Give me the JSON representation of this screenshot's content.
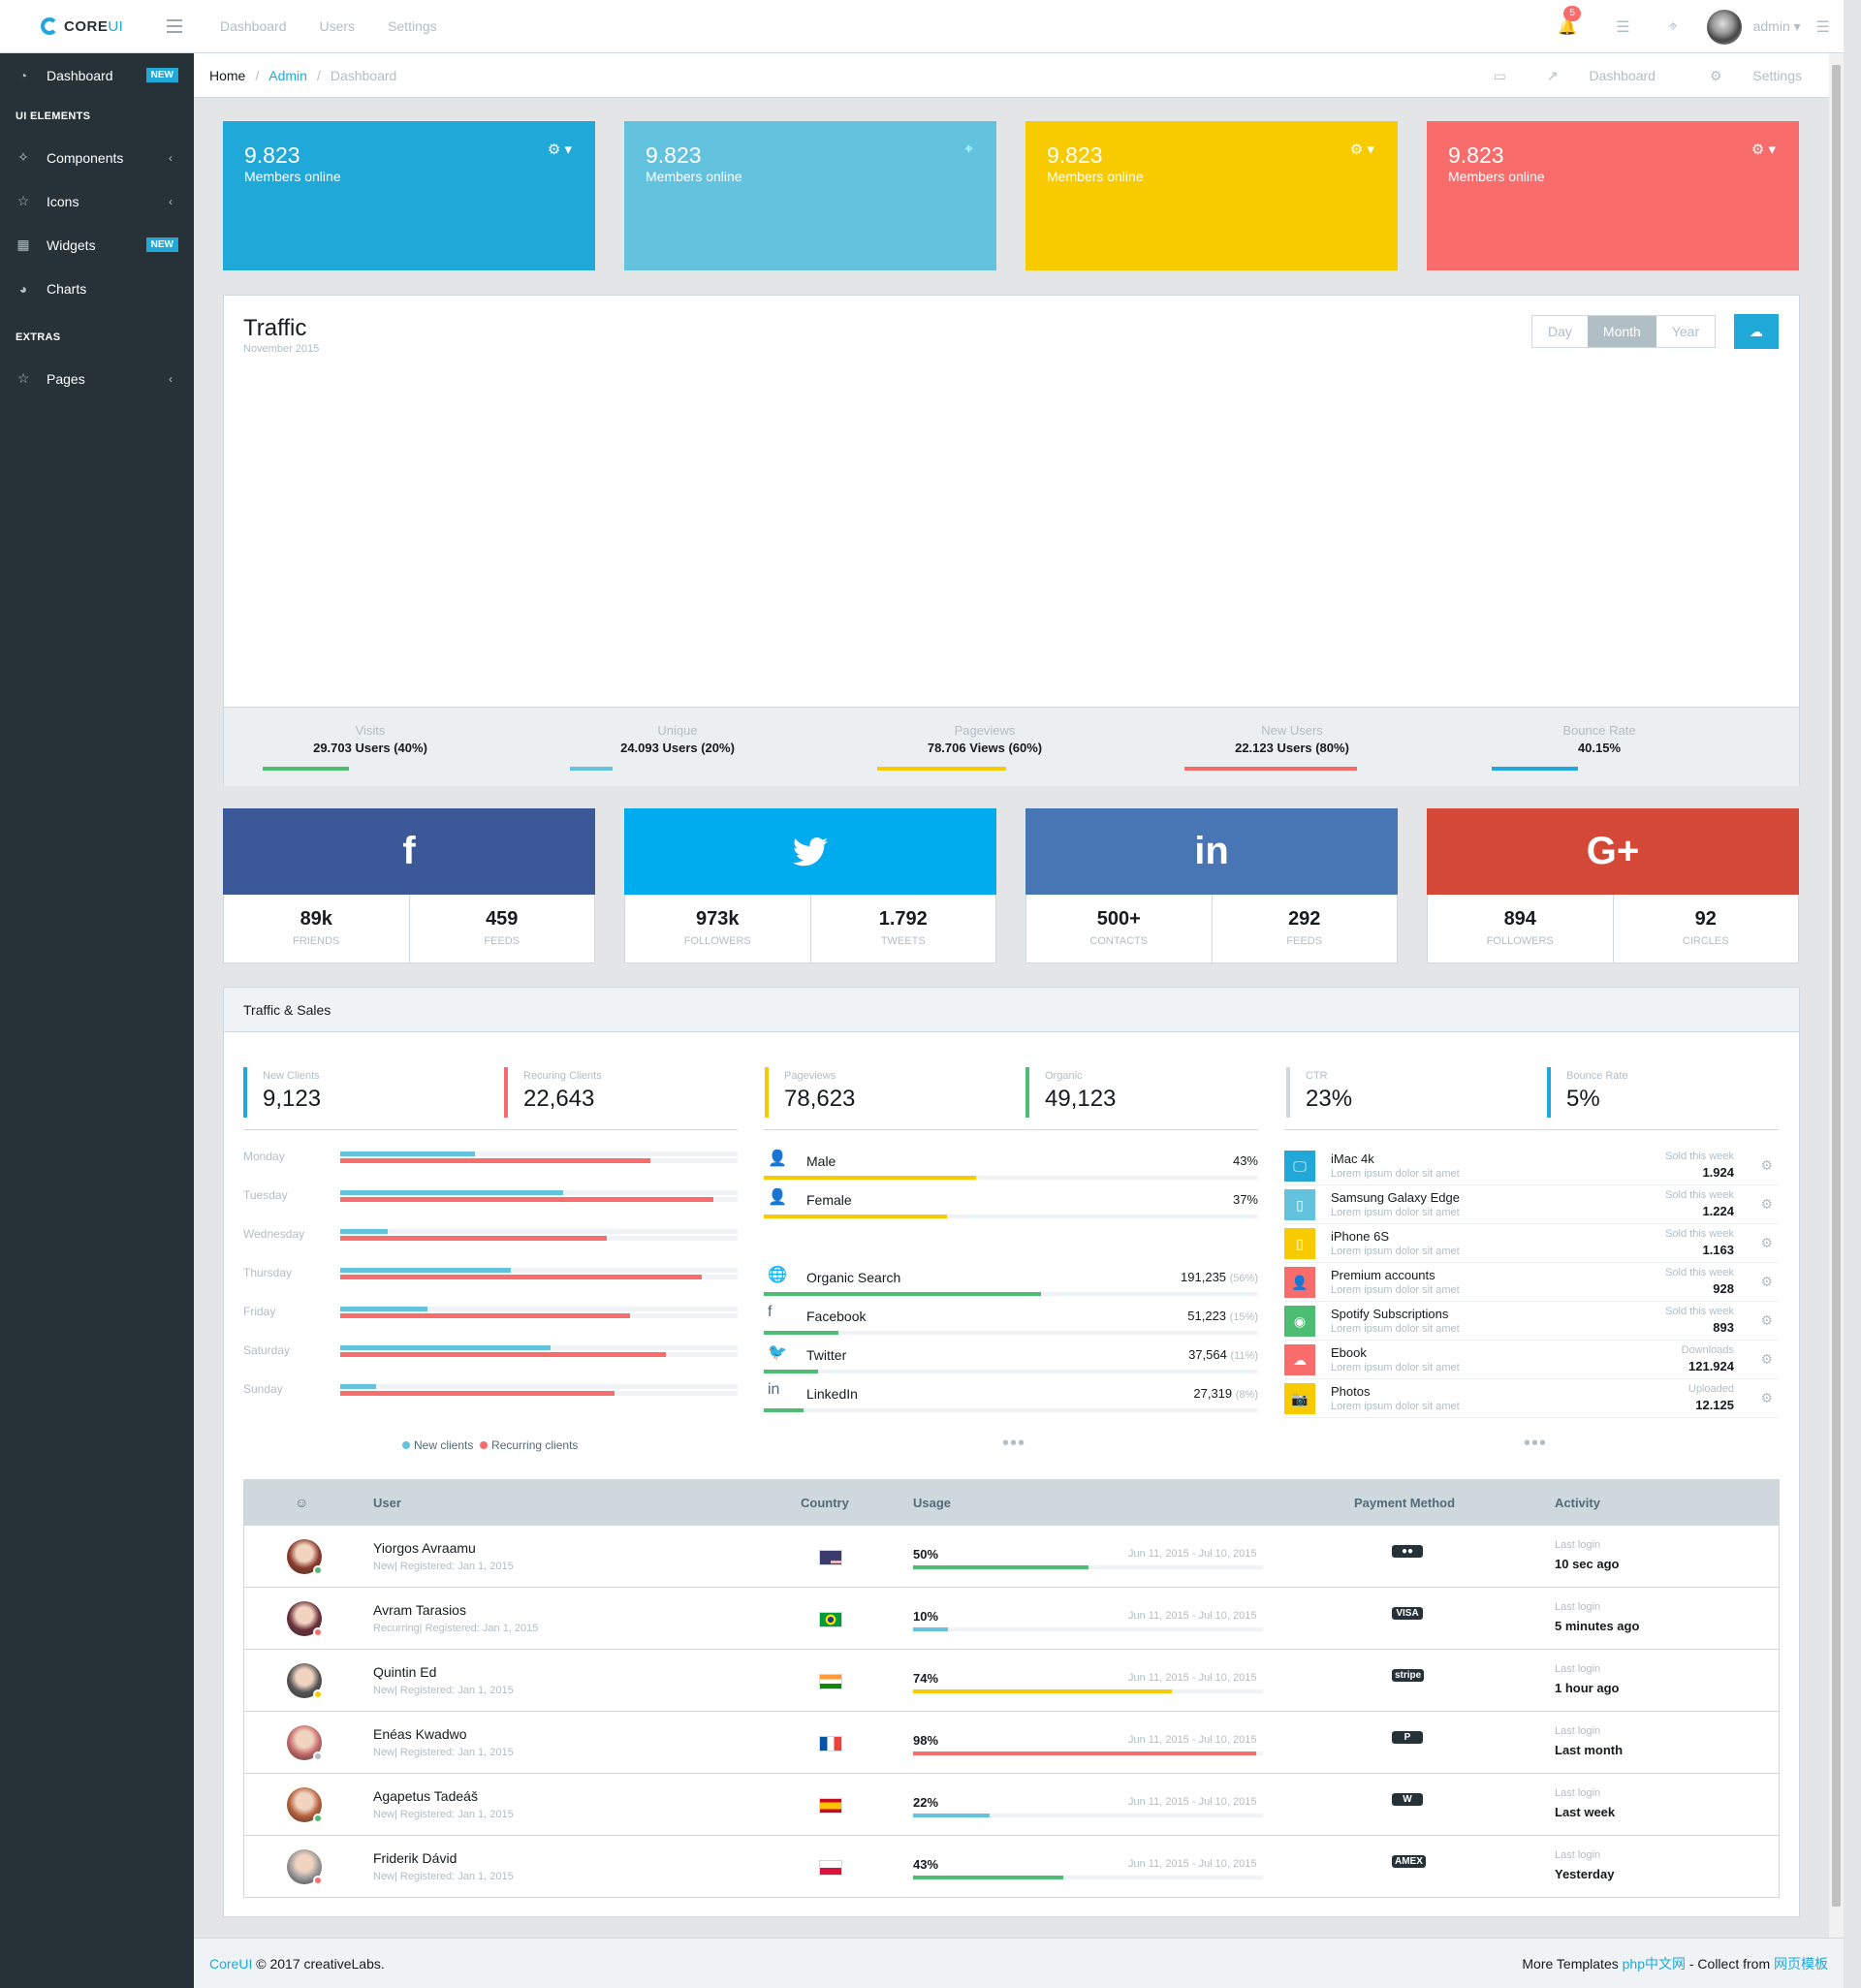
{
  "header": {
    "brand": "CORE",
    "brand_suffix": "UI",
    "nav": [
      "Dashboard",
      "Users",
      "Settings"
    ],
    "notif_count": "5",
    "user": "admin"
  },
  "sidebar": {
    "items": [
      {
        "label": "Dashboard",
        "icon": "speedometer-icon",
        "badge": "NEW"
      },
      {
        "section": "UI ELEMENTS"
      },
      {
        "label": "Components",
        "icon": "puzzle-icon",
        "chevron": "‹"
      },
      {
        "label": "Icons",
        "icon": "star-icon",
        "chevron": "‹"
      },
      {
        "label": "Widgets",
        "icon": "calculator-icon",
        "badge": "NEW"
      },
      {
        "label": "Charts",
        "icon": "pie-chart-icon"
      },
      {
        "section": "EXTRAS"
      },
      {
        "label": "Pages",
        "icon": "star-icon",
        "chevron": "‹"
      }
    ]
  },
  "breadcrumb": {
    "home": "Home",
    "admin": "Admin",
    "current": "Dashboard",
    "right_dashboard": "Dashboard",
    "right_settings": "Settings"
  },
  "stats": [
    {
      "value": "9.823",
      "label": "Members online",
      "color": "#20a8d8"
    },
    {
      "value": "9.823",
      "label": "Members online",
      "color": "#63c2de"
    },
    {
      "value": "9.823",
      "label": "Members online",
      "color": "#f8cb00"
    },
    {
      "value": "9.823",
      "label": "Members online",
      "color": "#f86c6b"
    }
  ],
  "traffic": {
    "title": "Traffic",
    "subtitle": "November 2015",
    "buttons": [
      "Day",
      "Month",
      "Year"
    ],
    "active": "Month",
    "footer": [
      {
        "title": "Visits",
        "value": "29.703 Users (40%)",
        "percent": 40,
        "color": "#4dbd74"
      },
      {
        "title": "Unique",
        "value": "24.093 Users (20%)",
        "percent": 20,
        "color": "#63c2de"
      },
      {
        "title": "Pageviews",
        "value": "78.706 Views (60%)",
        "percent": 60,
        "color": "#f8cb00"
      },
      {
        "title": "New Users",
        "value": "22.123 Users (80%)",
        "percent": 80,
        "color": "#f86c6b"
      },
      {
        "title": "Bounce Rate",
        "value": "40.15%",
        "percent": 40,
        "color": "#20a8d8"
      }
    ]
  },
  "social": [
    {
      "network": "facebook",
      "icon": "f",
      "color": "#3b5998",
      "a_val": "89k",
      "a_key": "friends",
      "b_val": "459",
      "b_key": "feeds"
    },
    {
      "network": "twitter",
      "icon": "🐦",
      "color": "#00aced",
      "a_val": "973k",
      "a_key": "followers",
      "b_val": "1.792",
      "b_key": "tweets"
    },
    {
      "network": "linkedin",
      "icon": "in",
      "color": "#4875b4",
      "a_val": "500+",
      "a_key": "contacts",
      "b_val": "292",
      "b_key": "feeds"
    },
    {
      "network": "google-plus",
      "icon": "G+",
      "color": "#d34836",
      "a_val": "894",
      "a_key": "followers",
      "b_val": "92",
      "b_key": "circles"
    }
  ],
  "traffic_sales": {
    "title": "Traffic & Sales",
    "callouts": [
      {
        "label": "New Clients",
        "value": "9,123",
        "color": "#20a8d8"
      },
      {
        "label": "Recuring Clients",
        "value": "22,643",
        "color": "#f86c6b"
      },
      {
        "label": "Pageviews",
        "value": "78,623",
        "color": "#f8cb00"
      },
      {
        "label": "Organic",
        "value": "49,123",
        "color": "#4dbd74"
      },
      {
        "label": "CTR",
        "value": "23%",
        "color": "#cfd8dc"
      },
      {
        "label": "Bounce Rate",
        "value": "5%",
        "color": "#20a8d8"
      }
    ],
    "days": [
      {
        "name": "Monday",
        "new": 34,
        "rec": 78
      },
      {
        "name": "Tuesday",
        "new": 56,
        "rec": 94
      },
      {
        "name": "Wednesday",
        "new": 12,
        "rec": 67
      },
      {
        "name": "Thursday",
        "new": 43,
        "rec": 91
      },
      {
        "name": "Friday",
        "new": 22,
        "rec": 73
      },
      {
        "name": "Saturday",
        "new": 53,
        "rec": 82
      },
      {
        "name": "Sunday",
        "new": 9,
        "rec": 69
      }
    ],
    "legend_new": "New clients",
    "legend_rec": "Recurring clients",
    "gender": [
      {
        "name": "Male",
        "value": "43%",
        "percent": 43,
        "icon": "user-icon"
      },
      {
        "name": "Female",
        "value": "37%",
        "percent": 37,
        "icon": "user-female-icon"
      }
    ],
    "sources": [
      {
        "name": "Organic Search",
        "value": "191,235",
        "pct": "(56%)",
        "percent": 56,
        "icon": "globe-icon"
      },
      {
        "name": "Facebook",
        "value": "51,223",
        "pct": "(15%)",
        "percent": 15,
        "icon": "facebook-icon"
      },
      {
        "name": "Twitter",
        "value": "37,564",
        "pct": "(11%)",
        "percent": 11,
        "icon": "twitter-icon"
      },
      {
        "name": "LinkedIn",
        "value": "27,319",
        "pct": "(8%)",
        "percent": 8,
        "icon": "linkedin-icon"
      }
    ],
    "sales": [
      {
        "name": "iMac 4k",
        "desc": "Lorem ipsum dolor sit amet",
        "key": "Sold this week",
        "value": "1.924",
        "color": "#20a8d8",
        "icon": "monitor-icon"
      },
      {
        "name": "Samsung Galaxy Edge",
        "desc": "Lorem ipsum dolor sit amet",
        "key": "Sold this week",
        "value": "1.224",
        "color": "#63c2de",
        "icon": "phone-icon"
      },
      {
        "name": "iPhone 6S",
        "desc": "Lorem ipsum dolor sit amet",
        "key": "Sold this week",
        "value": "1.163",
        "color": "#f8cb00",
        "icon": "phone-icon"
      },
      {
        "name": "Premium accounts",
        "desc": "Lorem ipsum dolor sit amet",
        "key": "Sold this week",
        "value": "928",
        "color": "#f86c6b",
        "icon": "user-icon"
      },
      {
        "name": "Spotify Subscriptions",
        "desc": "Lorem ipsum dolor sit amet",
        "key": "Sold this week",
        "value": "893",
        "color": "#4dbd74",
        "icon": "spotify-icon"
      },
      {
        "name": "Ebook",
        "desc": "Lorem ipsum dolor sit amet",
        "key": "Downloads",
        "value": "121.924",
        "color": "#f86c6b",
        "icon": "cloud-download-icon"
      },
      {
        "name": "Photos",
        "desc": "Lorem ipsum dolor sit amet",
        "key": "Uploaded",
        "value": "12.125",
        "color": "#f8cb00",
        "icon": "camera-icon"
      }
    ]
  },
  "table": {
    "headers": [
      "User",
      "Country",
      "Usage",
      "Payment Method",
      "Activity"
    ],
    "rows": [
      {
        "name": "Yiorgos Avraamu",
        "sub": "New| Registered: Jan 1, 2015",
        "status": "#4dbd74",
        "flag": "us",
        "usage": "50%",
        "percent": 50,
        "color": "#4dbd74",
        "range": "Jun 11, 2015 - Jul 10, 2015",
        "payment": "mastercard-icon",
        "act_key": "Last login",
        "act": "10 sec ago",
        "av": "#8b3a2b"
      },
      {
        "name": "Avram Tarasios",
        "sub": "Recurring| Registered: Jan 1, 2015",
        "status": "#f86c6b",
        "flag": "br",
        "usage": "10%",
        "percent": 10,
        "color": "#63c2de",
        "range": "Jun 11, 2015 - Jul 10, 2015",
        "payment": "visa-icon",
        "act_key": "Last login",
        "act": "5 minutes ago",
        "av": "#6b2f3a"
      },
      {
        "name": "Quintin Ed",
        "sub": "New| Registered: Jan 1, 2015",
        "status": "#f8cb00",
        "flag": "in",
        "usage": "74%",
        "percent": 74,
        "color": "#f8cb00",
        "range": "Jun 11, 2015 - Jul 10, 2015",
        "payment": "stripe-icon",
        "act_key": "Last login",
        "act": "1 hour ago",
        "av": "#555"
      },
      {
        "name": "Enéas Kwadwo",
        "sub": "New| Registered: Jan 1, 2015",
        "status": "#b0bec5",
        "flag": "fr",
        "usage": "98%",
        "percent": 98,
        "color": "#f86c6b",
        "range": "Jun 11, 2015 - Jul 10, 2015",
        "payment": "paypal-icon",
        "act_key": "Last login",
        "act": "Last month",
        "av": "#c46a6a"
      },
      {
        "name": "Agapetus Tadeáš",
        "sub": "New| Registered: Jan 1, 2015",
        "status": "#4dbd74",
        "flag": "es",
        "usage": "22%",
        "percent": 22,
        "color": "#63c2de",
        "range": "Jun 11, 2015 - Jul 10, 2015",
        "payment": "google-wallet-icon",
        "act_key": "Last login",
        "act": "Last week",
        "av": "#b5603a"
      },
      {
        "name": "Friderik Dávid",
        "sub": "New| Registered: Jan 1, 2015",
        "status": "#f86c6b",
        "flag": "pl",
        "usage": "43%",
        "percent": 43,
        "color": "#4dbd74",
        "range": "Jun 11, 2015 - Jul 10, 2015",
        "payment": "amex-icon",
        "act_key": "Last login",
        "act": "Yesterday",
        "av": "#999"
      }
    ]
  },
  "footer": {
    "brand": "CoreUI",
    "copy": "© 2017 creativeLabs.",
    "more": "More Templates ",
    "site1": "php中文网",
    "mid": " - Collect from ",
    "site2": "网页模板"
  }
}
